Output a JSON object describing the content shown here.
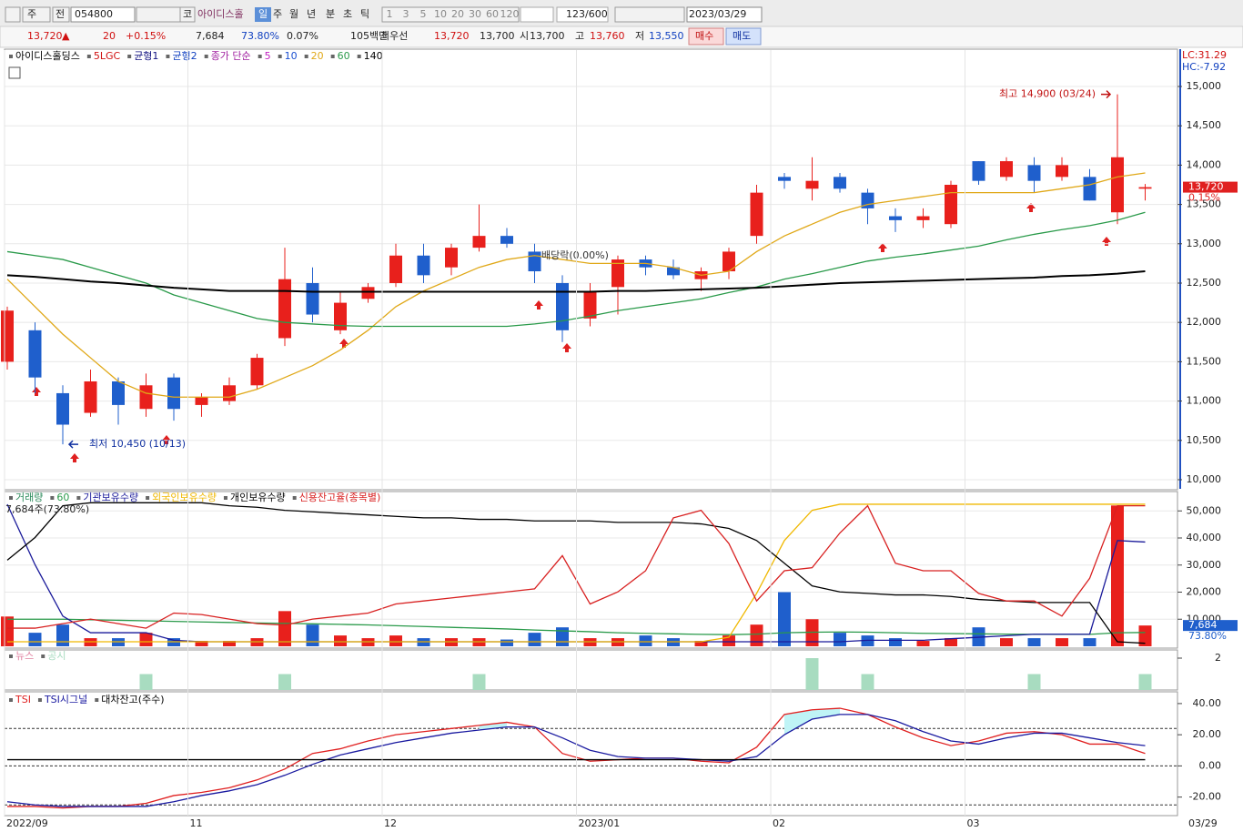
{
  "toolbar": {
    "type_buttons": [
      "주",
      "전"
    ],
    "code": "054800",
    "market": "코",
    "name": "아이디스홀",
    "periods": [
      "일",
      "주",
      "월",
      "년",
      "분",
      "초",
      "틱"
    ],
    "intervals": [
      "1",
      "3",
      "5",
      "10",
      "20",
      "30",
      "60",
      "120"
    ],
    "count": "123",
    "max": "/600",
    "date": "2023/03/29"
  },
  "quote": {
    "price": "13,720",
    "arrow": "▲",
    "change": "20",
    "change_pct": "+0.15%",
    "volume": "7,684",
    "ratio": "73.80%",
    "turnover": "0.07%",
    "amount": "105백만",
    "best_label": "최우선",
    "ask": "13,720",
    "bid": "13,700",
    "open_label": "시",
    "open": "13,700",
    "high_label": "고",
    "high": "13,760",
    "low_label": "저",
    "low": "13,550",
    "buy": "매수",
    "sell": "매도"
  },
  "chart_data": [
    {
      "type": "candlestick",
      "legend": [
        "아이디스홀딩스",
        "5LGC",
        "균형1",
        "균형2",
        "종가 단순",
        "5",
        "10"
      ],
      "legend_colors": [
        "#000000",
        "#d01010",
        "#101080",
        "#1040c0",
        "#a020a0",
        "#c020c0",
        "#1a4fd0"
      ],
      "open": [
        11500,
        11900,
        11100,
        10850,
        11250,
        10900,
        11300,
        10950,
        11000,
        11200,
        11800,
        12500,
        11900,
        12300,
        12500,
        12850,
        12700,
        12950,
        13100,
        12900,
        12500,
        12050,
        12450,
        12800,
        12700,
        12550,
        12650,
        13100,
        13850,
        13700,
        13850,
        13650,
        13350,
        13300,
        13250,
        14050,
        13850,
        14000,
        13850,
        13850,
        13400,
        13700
      ],
      "high": [
        12200,
        12000,
        11200,
        11400,
        11300,
        11350,
        11350,
        11100,
        11300,
        11600,
        12950,
        12700,
        12400,
        12500,
        13000,
        13000,
        13000,
        13500,
        13200,
        13000,
        12600,
        12500,
        12850,
        12850,
        12800,
        12700,
        12950,
        13750,
        13900,
        14100,
        13900,
        13700,
        13450,
        13450,
        13800,
        14050,
        14100,
        14100,
        14100,
        13950,
        14900,
        13760
      ],
      "low": [
        11400,
        11100,
        10450,
        10800,
        10700,
        10800,
        10750,
        10800,
        10950,
        11150,
        11700,
        12000,
        11850,
        12250,
        12450,
        12500,
        12600,
        12900,
        12950,
        12500,
        11750,
        11950,
        12100,
        12600,
        12550,
        12400,
        12550,
        13000,
        13700,
        13550,
        13650,
        13250,
        13150,
        13200,
        13200,
        13750,
        13800,
        13650,
        13800,
        13550,
        13250,
        13550
      ],
      "close": [
        12150,
        11300,
        10700,
        11250,
        10950,
        11200,
        10900,
        11050,
        11200,
        11550,
        12550,
        12100,
        12250,
        12450,
        12850,
        12600,
        12950,
        13100,
        13000,
        12650,
        11900,
        12400,
        12800,
        12700,
        12600,
        12650,
        12900,
        13650,
        13800,
        13800,
        13700,
        13450,
        13300,
        13350,
        13750,
        13800,
        14050,
        13800,
        14000,
        13550,
        14100,
        13720
      ],
      "up_color": "#e8201c",
      "down_color": "#1f5fcc",
      "series": [
        {
          "name": "20",
          "color": "#e0a818",
          "values": [
            12550,
            12200,
            11850,
            11550,
            11250,
            11100,
            11050,
            11050,
            11050,
            11150,
            11300,
            11450,
            11650,
            11900,
            12200,
            12400,
            12550,
            12700,
            12800,
            12850,
            12800,
            12750,
            12750,
            12750,
            12700,
            12600,
            12650,
            12900,
            13100,
            13250,
            13400,
            13500,
            13550,
            13600,
            13650,
            13650,
            13650,
            13650,
            13700,
            13750,
            13850,
            13900
          ]
        },
        {
          "name": "60",
          "color": "#2a9a4a",
          "values": [
            12900,
            12850,
            12800,
            12700,
            12600,
            12500,
            12350,
            12250,
            12150,
            12050,
            12000,
            11980,
            11960,
            11950,
            11950,
            11950,
            11950,
            11950,
            11950,
            11980,
            12020,
            12080,
            12150,
            12200,
            12250,
            12300,
            12380,
            12450,
            12550,
            12620,
            12700,
            12780,
            12830,
            12870,
            12920,
            12970,
            13050,
            13120,
            13180,
            13230,
            13300,
            13400
          ]
        },
        {
          "name": "140",
          "color": "#000000",
          "values": [
            12600,
            12580,
            12550,
            12520,
            12500,
            12470,
            12440,
            12420,
            12400,
            12400,
            12400,
            12390,
            12390,
            12390,
            12390,
            12390,
            12390,
            12390,
            12390,
            12390,
            12390,
            12390,
            12400,
            12400,
            12410,
            12420,
            12430,
            12440,
            12460,
            12480,
            12500,
            12510,
            12520,
            12530,
            12540,
            12550,
            12560,
            12570,
            12590,
            12600,
            12620,
            12650
          ]
        }
      ],
      "ylim": [
        9884,
        15463
      ],
      "yticks": [
        {
          "value": 15000,
          "label": "15,000"
        },
        {
          "value": 14500,
          "label": "14,500"
        },
        {
          "value": 14000,
          "label": "14,000"
        },
        {
          "value": 13500,
          "label": "13,500"
        },
        {
          "value": 13000,
          "label": "13,000"
        },
        {
          "value": 12500,
          "label": "12,500"
        },
        {
          "value": 12000,
          "label": "12,000"
        },
        {
          "value": 11500,
          "label": "11,500"
        },
        {
          "value": 11000,
          "label": "11,000"
        },
        {
          "value": 10500,
          "label": "10,500"
        },
        {
          "value": 10000,
          "label": "10,000"
        }
      ],
      "grid": true,
      "annotations": [
        {
          "text": "최고 14,900 (03/24)",
          "value": 14900
        },
        {
          "text": "최저 10,450 (10/13)",
          "value": 10450
        },
        {
          "text": "배당락(0.00%)"
        }
      ],
      "last_label": "13,720",
      "last_value": 13720,
      "last_pct": "0.15%",
      "lc": "LC:31.29",
      "hc": "HC:-7.92"
    },
    {
      "type": "bar",
      "up_color": "#e8201c",
      "down_color": "#1f5fcc",
      "series": [
        {
          "name": "거래량",
          "color": "#2a8a5a",
          "mark": "bar",
          "values": [
            11000,
            5000,
            8000,
            3000,
            3000,
            5000,
            3000,
            2000,
            2000,
            3000,
            13000,
            8000,
            4000,
            3000,
            4000,
            3000,
            3000,
            3000,
            2500,
            5000,
            7000,
            3000,
            3000,
            4000,
            3000,
            2000,
            4000,
            8000,
            20000,
            10000,
            5000,
            4000,
            3000,
            2000,
            3000,
            7000,
            3000,
            3000,
            3000,
            3000,
            52000,
            7684
          ]
        },
        {
          "name": "60",
          "color": "#2a9a4a",
          "values": [
            10000,
            10000,
            10000,
            9800,
            9600,
            9400,
            9200,
            9000,
            8800,
            8600,
            8500,
            8300,
            8100,
            7900,
            7600,
            7300,
            7000,
            6700,
            6400,
            6000,
            5700,
            5400,
            5000,
            4800,
            4600,
            4400,
            4300,
            4500,
            5000,
            5200,
            5300,
            5200,
            5000,
            4800,
            4700,
            4600,
            4500,
            4400,
            4400,
            4400,
            5000,
            5100
          ]
        },
        {
          "name": "기관보유수량",
          "color": "#1a1a9a",
          "axis": "y2",
          "values": [
            94,
            54,
            20,
            9,
            9,
            9,
            4,
            3,
            3,
            3,
            3,
            3,
            3,
            3,
            3,
            3,
            3,
            3,
            3,
            3,
            3,
            3,
            3,
            3,
            3,
            3,
            3,
            3,
            3,
            3,
            3,
            4,
            4,
            4,
            5,
            6,
            7,
            8,
            8,
            8,
            70,
            69
          ]
        },
        {
          "name": "외국인보유수량",
          "color": "#f0b800",
          "axis": "y2",
          "values": [
            3,
            3,
            3,
            3,
            3,
            3,
            3,
            3,
            3,
            3,
            3,
            3,
            3,
            3,
            3,
            3,
            3,
            3,
            3,
            3,
            3,
            3,
            3,
            3,
            3,
            3,
            6,
            35,
            70,
            90,
            94,
            94,
            94,
            94,
            94,
            94,
            94,
            94,
            94,
            94,
            94,
            94
          ]
        },
        {
          "name": "개인보유수량",
          "color": "#000000",
          "axis": "y2",
          "values": [
            57,
            72,
            93,
            95,
            95,
            95,
            95,
            95,
            93,
            92,
            90,
            89,
            88,
            87,
            86,
            85,
            85,
            84,
            84,
            83,
            83,
            83,
            82,
            82,
            82,
            81,
            78,
            70,
            55,
            40,
            36,
            35,
            34,
            34,
            33,
            31,
            30,
            29,
            29,
            29,
            3,
            2
          ]
        },
        {
          "name": "신용잔고율(종목별)",
          "color": "#d82020",
          "axis": "y2",
          "values": [
            12,
            12,
            15,
            18,
            15,
            12,
            22,
            21,
            18,
            15,
            14,
            18,
            20,
            22,
            28,
            30,
            32,
            34,
            36,
            38,
            60,
            28,
            36,
            50,
            85,
            90,
            68,
            30,
            50,
            52,
            75,
            93,
            55,
            50,
            50,
            35,
            30,
            30,
            20,
            45,
            93,
            93
          ]
        }
      ],
      "ylim": [
        0,
        55800
      ],
      "y2lim": [
        0,
        100
      ],
      "yticks": [
        {
          "value": 50000,
          "label": "50,000"
        },
        {
          "value": 40000,
          "label": "40,000"
        },
        {
          "value": 30000,
          "label": "30,000"
        },
        {
          "value": 20000,
          "label": "20,000"
        },
        {
          "value": 10000,
          "label": "10,000"
        }
      ],
      "grid": true,
      "last_label": "7,684",
      "ratio_label": "73.80%",
      "holding_label": "7,684주(73.80%)"
    },
    {
      "type": "bar",
      "legend": [
        "뉴스"
      ],
      "legend_colors": [
        "#e080a0"
      ],
      "series": [
        {
          "name": "공시",
          "color": "#a8dcc0",
          "mark": "bar",
          "values": [
            0,
            0,
            0,
            0,
            0,
            1,
            0,
            0,
            0,
            0,
            1,
            0,
            0,
            0,
            0,
            0,
            0,
            1,
            0,
            0,
            0,
            0,
            0,
            0,
            0,
            0,
            0,
            0,
            0,
            2,
            0,
            1,
            0,
            0,
            0,
            0,
            0,
            1,
            0,
            0,
            0,
            1
          ]
        }
      ],
      "ylim": [
        0,
        2.4
      ],
      "yticks": [
        2
      ],
      "grid": false
    },
    {
      "type": "line",
      "series": [
        {
          "name": "TSI",
          "color": "#e02020",
          "values": [
            -26,
            -26,
            -27,
            -26,
            -26,
            -24,
            -19,
            -17,
            -14,
            -9,
            -2,
            8,
            11,
            16,
            20,
            22,
            24,
            26,
            28,
            25,
            8,
            3,
            4,
            5,
            5,
            3,
            2,
            12,
            33,
            36,
            37,
            33,
            25,
            18,
            13,
            16,
            21,
            22,
            20,
            14,
            14,
            8
          ]
        },
        {
          "name": "TSI시그널",
          "color": "#1a1aa0",
          "values": [
            -23,
            -25,
            -26,
            -26,
            -26,
            -26,
            -23,
            -19,
            -16,
            -12,
            -6,
            1,
            7,
            11,
            15,
            18,
            21,
            23,
            25,
            25,
            18,
            10,
            6,
            5,
            5,
            4,
            3,
            6,
            20,
            30,
            33,
            33,
            29,
            22,
            16,
            14,
            18,
            21,
            21,
            18,
            15,
            13
          ]
        },
        {
          "name": "대차잔고(주수)",
          "color": "#000000",
          "values": [
            4,
            4,
            4,
            4,
            4,
            4,
            4,
            4,
            4,
            4,
            4,
            4,
            4,
            4,
            4,
            4,
            4,
            4,
            4,
            4,
            4,
            4,
            4,
            4,
            4,
            4,
            4,
            4,
            4,
            4,
            4,
            4,
            4,
            4,
            4,
            4,
            4,
            4,
            4,
            4,
            4,
            4
          ]
        }
      ],
      "ylim": [
        -31.3,
        45.2
      ],
      "yticks": [
        {
          "value": 40,
          "label": "40.00"
        },
        {
          "value": 20,
          "label": "20.00"
        },
        {
          "value": 0,
          "label": "0.00"
        },
        {
          "value": -20,
          "label": "-20.00"
        }
      ],
      "levels": [
        24,
        0,
        -25
      ],
      "fill_color": "#bff4f6",
      "grid": false,
      "categories": [
        "2022/09",
        null,
        null,
        null,
        null,
        null,
        null,
        "11",
        null,
        null,
        null,
        null,
        null,
        null,
        "12",
        null,
        null,
        null,
        null,
        null,
        null,
        "2023/01",
        null,
        null,
        null,
        null,
        null,
        null,
        "02",
        null,
        null,
        null,
        null,
        null,
        null,
        "03",
        null,
        null,
        null,
        null,
        null,
        null
      ],
      "end_label": "03/29"
    }
  ]
}
